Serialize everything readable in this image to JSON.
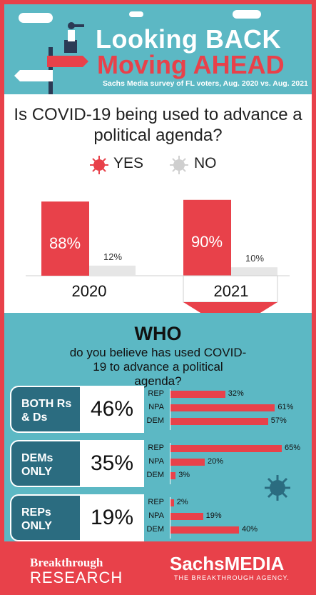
{
  "header": {
    "title_line1": "Looking  BACK",
    "title_line2": "Moving AHEAD",
    "subtitle": "Sachs Media survey of FL voters, Aug. 2020 vs. Aug. 2021"
  },
  "question": "Is COVID-19 being used to advance a political agenda?",
  "legend": {
    "yes": "YES",
    "no": "NO"
  },
  "colors": {
    "accent": "#e8414a",
    "teal": "#5cb8c4",
    "dark_teal": "#2b6c80",
    "gray": "#e6e6e6"
  },
  "chart_data": [
    {
      "type": "bar",
      "categories": [
        "2020",
        "2021"
      ],
      "series": [
        {
          "name": "YES",
          "values": [
            88,
            90
          ],
          "labels": [
            "88%",
            "90%"
          ]
        },
        {
          "name": "NO",
          "values": [
            12,
            10
          ],
          "labels": [
            "12%",
            "10%"
          ]
        }
      ],
      "ylim": [
        0,
        100
      ]
    },
    {
      "type": "bar",
      "title": "WHO",
      "subtitle": "do you believe has used COVID-19 to advance a political agenda?",
      "groups": [
        {
          "label": "BOTH Rs & Ds",
          "total": "46%",
          "parties": [
            "REP",
            "NPA",
            "DEM"
          ],
          "values": [
            32,
            61,
            57
          ],
          "labels": [
            "32%",
            "61%",
            "57%"
          ]
        },
        {
          "label": "DEMs ONLY",
          "total": "35%",
          "parties": [
            "REP",
            "NPA",
            "DEM"
          ],
          "values": [
            65,
            20,
            3
          ],
          "labels": [
            "65%",
            "20%",
            "3%"
          ]
        },
        {
          "label": "REPs ONLY",
          "total": "19%",
          "parties": [
            "REP",
            "NPA",
            "DEM"
          ],
          "values": [
            2,
            19,
            40
          ],
          "labels": [
            "2%",
            "19%",
            "40%"
          ]
        }
      ]
    }
  ],
  "footer": {
    "left_line1": "Breakthrough",
    "left_line2": "RESEARCH",
    "right_main": "SachsMEDIA",
    "right_tag": "THE BREAKTHROUGH AGENCY."
  }
}
